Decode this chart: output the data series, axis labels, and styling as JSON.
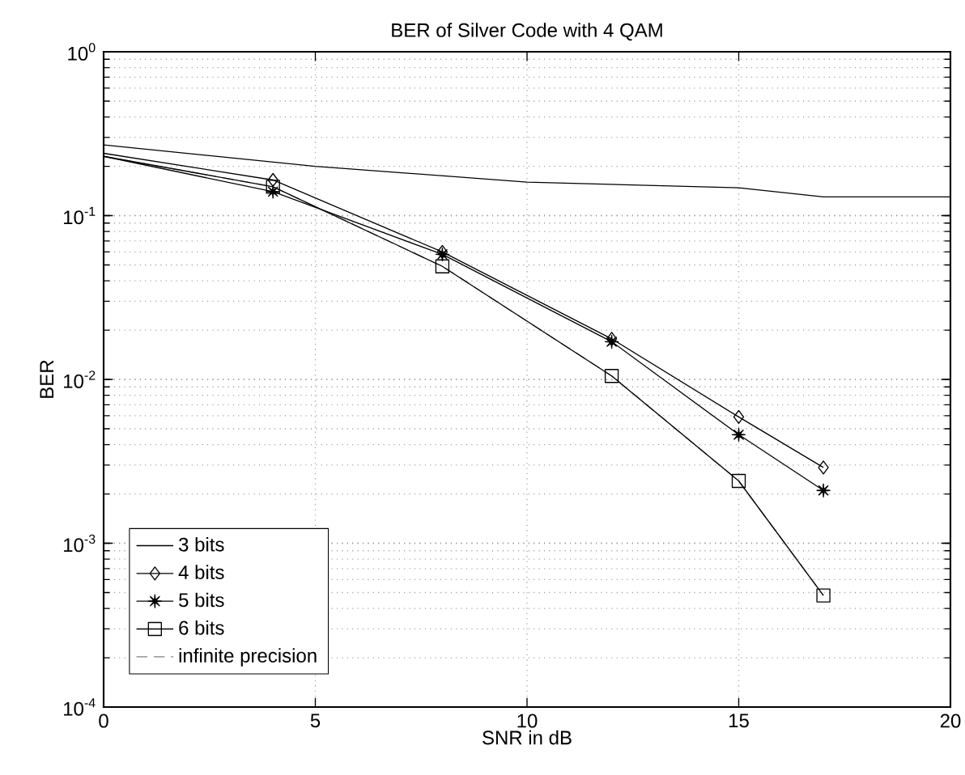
{
  "chart_data": {
    "type": "line",
    "title": "BER of Silver Code with 4 QAM",
    "xlabel": "SNR in dB",
    "ylabel": "BER",
    "log": "y",
    "grid": true,
    "legend": "bottom left",
    "xlim": [
      0,
      20
    ],
    "xticks": [
      0,
      5,
      10,
      15,
      20
    ],
    "ylim": [
      0.0001,
      1
    ],
    "yticks": [
      {
        "value": 0.0001,
        "label": "10$^{-4}$"
      },
      {
        "value": 0.001,
        "label": "10$^{-3}$"
      },
      {
        "value": 0.01,
        "label": "10$^{-2}$"
      },
      {
        "value": 0.1,
        "label": "10$^{-1}$"
      },
      {
        "value": 1,
        "label": "10$^{0}$"
      }
    ],
    "series": [
      {
        "name": "3 bits",
        "color": "#000000",
        "marker": "none",
        "line_style": "solid",
        "x": [
          0,
          5,
          10,
          15,
          17,
          20
        ],
        "values": [
          0.27,
          0.2,
          0.16,
          0.148,
          0.13,
          0.13
        ]
      },
      {
        "name": "4 bits",
        "color": "#000000",
        "marker": "diamond",
        "line_style": "solid",
        "x": [
          0,
          4,
          8,
          12,
          15,
          17
        ],
        "values": [
          0.24,
          0.165,
          0.06,
          0.0177,
          0.0059,
          0.0029
        ]
      },
      {
        "name": "5 bits",
        "color": "#000000",
        "marker": "star",
        "line_style": "solid",
        "x": [
          0,
          4,
          8,
          12,
          15,
          17
        ],
        "values": [
          0.23,
          0.14,
          0.058,
          0.017,
          0.0046,
          0.0021
        ]
      },
      {
        "name": "6 bits",
        "color": "#000000",
        "marker": "square",
        "line_style": "solid",
        "x": [
          0,
          4,
          8,
          12,
          15,
          17
        ],
        "values": [
          0.23,
          0.15,
          0.049,
          0.0105,
          0.0024,
          0.00048
        ]
      },
      {
        "name": "infinite precision",
        "color": "#808080",
        "marker": "none",
        "line_style": "dashed",
        "x": [
          0,
          4,
          8,
          12,
          15,
          17
        ],
        "values": [
          0.23,
          0.15,
          0.049,
          0.0105,
          0.0024,
          0.00048
        ]
      }
    ]
  }
}
